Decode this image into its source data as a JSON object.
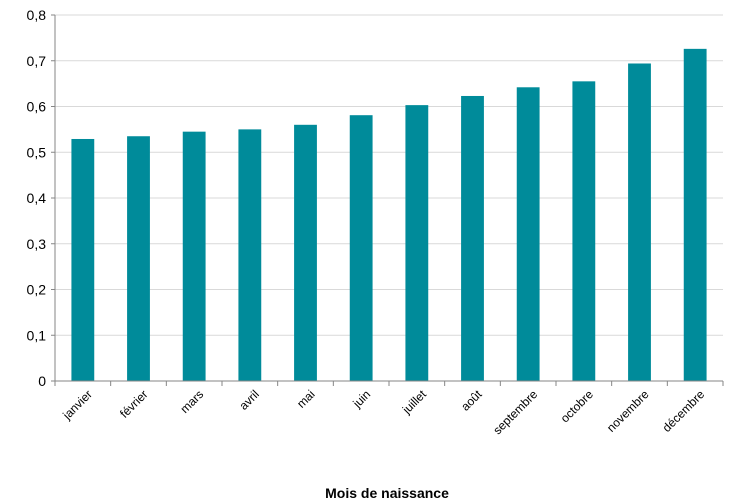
{
  "chart_data": {
    "type": "bar",
    "title": "",
    "xlabel": "Mois de naissance",
    "ylabel": "",
    "ylim": [
      0,
      0.8
    ],
    "yticks": [
      "0",
      "0,1",
      "0,2",
      "0,3",
      "0,4",
      "0,5",
      "0,6",
      "0,7",
      "0,8"
    ],
    "ytick_values": [
      0,
      0.1,
      0.2,
      0.3,
      0.4,
      0.5,
      0.6,
      0.7,
      0.8
    ],
    "grid": true,
    "legend": "none",
    "bar_color": "#008b9a",
    "categories": [
      "janvier",
      "février",
      "mars",
      "avril",
      "mai",
      "juin",
      "juillet",
      "août",
      "septembre",
      "octobre",
      "novembre",
      "décembre"
    ],
    "values": [
      0.529,
      0.535,
      0.545,
      0.55,
      0.56,
      0.581,
      0.603,
      0.623,
      0.642,
      0.655,
      0.694,
      0.726
    ]
  }
}
